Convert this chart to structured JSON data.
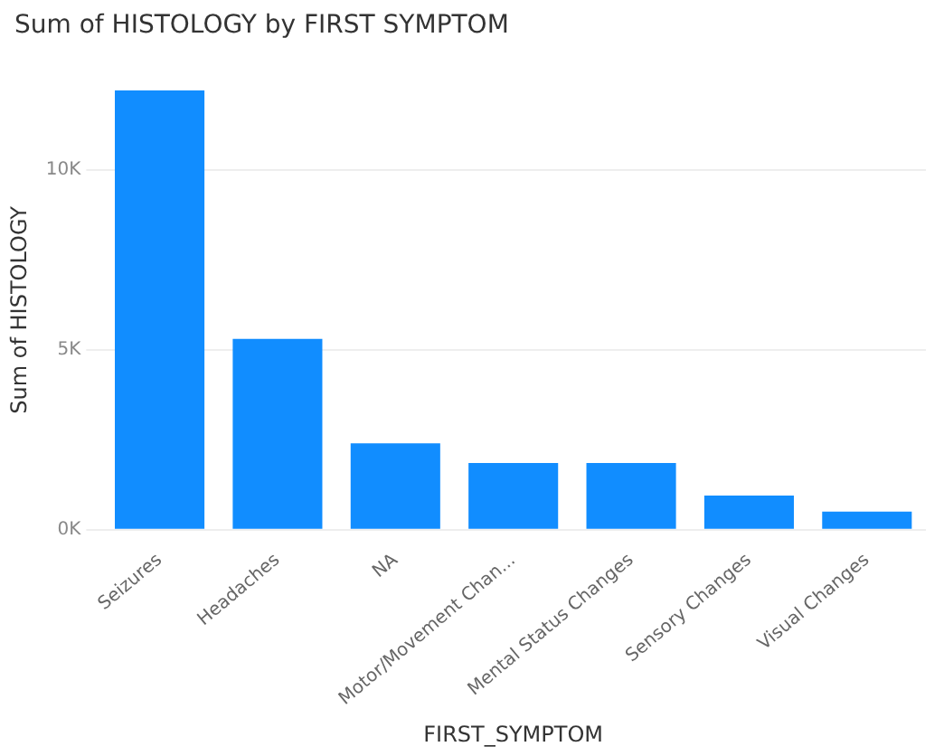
{
  "chart_data": {
    "type": "bar",
    "title": "Sum of HISTOLOGY by FIRST SYMPTOM",
    "xlabel": "FIRST_SYMPTOM",
    "ylabel": "Sum of HISTOLOGY",
    "categories": [
      "Seizures",
      "Headaches",
      "NA",
      "Motor/Movement Chan...",
      "Mental Status Changes",
      "Sensory Changes",
      "Visual Changes"
    ],
    "values": [
      12200,
      5300,
      2400,
      1850,
      1850,
      950,
      500
    ],
    "color": "#118dff",
    "ylim": [
      0,
      12200
    ],
    "yticks": [
      {
        "value": 0,
        "label": "0K"
      },
      {
        "value": 5000,
        "label": "5K"
      },
      {
        "value": 10000,
        "label": "10K"
      }
    ],
    "grid": "y"
  }
}
